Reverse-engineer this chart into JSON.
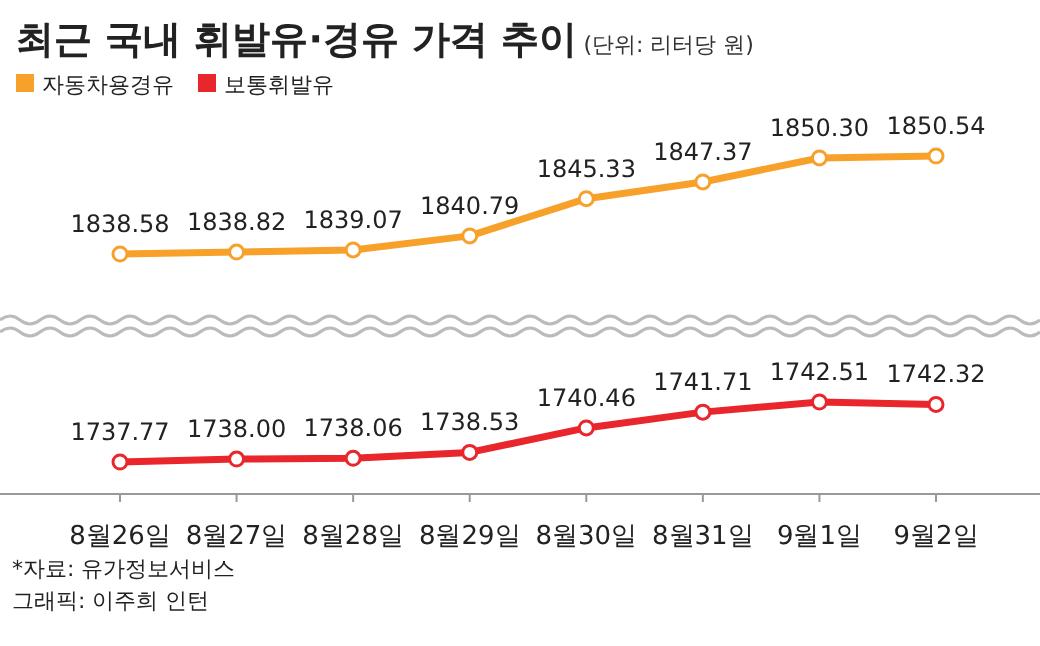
{
  "chart_data": [
    {
      "type": "line",
      "title": "최근 국내 휘발유·경유 가격 추이",
      "subtitle": "(단위: 리터당 원)",
      "categories": [
        null,
        null,
        null,
        null,
        null,
        null,
        null,
        null
      ],
      "tick_labels": false,
      "series": [
        {
          "name": "자동차용경유",
          "color": "#f7a12a",
          "values": [
            1838.58,
            1838.82,
            1839.07,
            1840.79,
            1845.33,
            1847.37,
            1850.3,
            1850.54
          ],
          "value_labels": [
            "1838.58",
            "1838.82",
            "1839.07",
            "1840.79",
            "1845.33",
            "1847.37",
            "1850.30",
            "1850.54"
          ]
        }
      ],
      "legend": "top left",
      "marker": "circle",
      "line_style": "solid",
      "grid": false
    },
    {
      "type": "line",
      "categories": [
        "8월26일",
        "8월27일",
        "8월28일",
        "8월29일",
        "8월30일",
        "8월31일",
        "9월1일",
        "9월2일"
      ],
      "series": [
        {
          "name": "보통휘발유",
          "color": "#e8262b",
          "values": [
            1737.77,
            1738.0,
            1738.06,
            1738.53,
            1740.46,
            1741.71,
            1742.51,
            1742.32
          ],
          "value_labels": [
            "1737.77",
            "1738.00",
            "1738.06",
            "1738.53",
            "1740.46",
            "1741.71",
            "1742.51",
            "1742.32"
          ]
        }
      ],
      "legend": "top left",
      "marker": "circle",
      "line_style": "solid",
      "grid": false,
      "annotations": [
        "*자료: 유가정보서비스",
        "그래픽: 이주희 인턴"
      ]
    }
  ]
}
